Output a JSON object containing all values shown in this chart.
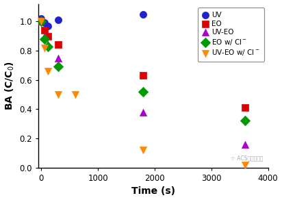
{
  "title": "",
  "xlabel": "Time (s)",
  "ylabel": "BA (C/C$_0$)",
  "xlim": [
    -50,
    4000
  ],
  "ylim": [
    0.0,
    1.12
  ],
  "xticks": [
    0,
    1000,
    2000,
    3000,
    4000
  ],
  "yticks": [
    0.0,
    0.2,
    0.4,
    0.6,
    0.8,
    1.0
  ],
  "series": [
    {
      "label": "UV",
      "color": "#2222cc",
      "marker": "o",
      "markersize": 7,
      "x": [
        0,
        60,
        120,
        300,
        1800
      ],
      "y": [
        1.02,
        0.99,
        0.97,
        1.01,
        1.05
      ],
      "fit": false
    },
    {
      "label": "EO",
      "color": "#dd0000",
      "marker": "s",
      "markersize": 7,
      "x": [
        0,
        60,
        120,
        300,
        1800,
        3600
      ],
      "y": [
        1.0,
        0.94,
        0.9,
        0.84,
        0.63,
        0.41
      ],
      "fit": true
    },
    {
      "label": "UV-EO",
      "color": "#aa00cc",
      "marker": "^",
      "markersize": 7,
      "x": [
        0,
        60,
        120,
        300,
        1800,
        3600
      ],
      "y": [
        1.0,
        0.9,
        0.84,
        0.75,
        0.38,
        0.16
      ],
      "fit": true
    },
    {
      "label": "EO w/ Cl$^-$",
      "color": "#009900",
      "marker": "D",
      "markersize": 7,
      "x": [
        0,
        60,
        120,
        300,
        1800,
        3600
      ],
      "y": [
        1.0,
        0.88,
        0.83,
        0.69,
        0.52,
        0.32
      ],
      "fit": true
    },
    {
      "label": "UV-EO w/ Cl$^-$",
      "color": "#ff8800",
      "marker": "v",
      "markersize": 7,
      "x": [
        0,
        60,
        120,
        300,
        600,
        1800,
        3600
      ],
      "y": [
        1.0,
        0.82,
        0.66,
        0.5,
        0.5,
        0.12,
        0.02
      ],
      "fit": true
    }
  ],
  "legend_fontsize": 7.5,
  "axis_label_fontsize": 10,
  "tick_fontsize": 8.5,
  "background_color": "#ffffff"
}
